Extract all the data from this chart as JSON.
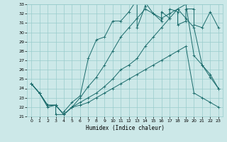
{
  "xlabel": "Humidex (Indice chaleur)",
  "xlim": [
    -0.5,
    23.5
  ],
  "ylim": [
    21,
    33
  ],
  "xticks": [
    0,
    1,
    2,
    3,
    4,
    5,
    6,
    7,
    8,
    9,
    10,
    11,
    12,
    13,
    14,
    15,
    16,
    17,
    18,
    19,
    20,
    21,
    22,
    23
  ],
  "yticks": [
    21,
    22,
    23,
    24,
    25,
    26,
    27,
    28,
    29,
    30,
    31,
    32,
    33
  ],
  "bg_color": "#cce8e8",
  "grid_color": "#99cccc",
  "line_color": "#1a6b6b",
  "line1_x": [
    0,
    1,
    2,
    3,
    3,
    4,
    4,
    5,
    6,
    7,
    8,
    9,
    10,
    11,
    12,
    13,
    13,
    14,
    14,
    15,
    16,
    16,
    17,
    17,
    18,
    18,
    19,
    19,
    20,
    20,
    21,
    22,
    23
  ],
  "line1_y": [
    24.5,
    23.5,
    22.0,
    22.2,
    21.2,
    21.2,
    21.5,
    22.5,
    23.2,
    27.2,
    29.2,
    29.5,
    31.2,
    31.2,
    32.2,
    33.5,
    30.5,
    32.8,
    33.2,
    32.0,
    31.2,
    32.2,
    31.5,
    32.5,
    32.2,
    30.8,
    31.2,
    32.5,
    32.5,
    30.8,
    30.5,
    32.2,
    30.5
  ],
  "line2_x": [
    0,
    1,
    2,
    3,
    4,
    5,
    6,
    7,
    8,
    9,
    10,
    11,
    12,
    13,
    14,
    15,
    16,
    17,
    18,
    19,
    20,
    21,
    22,
    23
  ],
  "line2_y": [
    24.5,
    23.5,
    22.2,
    22.2,
    21.2,
    22.0,
    23.0,
    24.2,
    25.2,
    26.5,
    28.0,
    29.5,
    30.5,
    31.5,
    32.5,
    32.0,
    31.5,
    32.0,
    32.5,
    31.5,
    30.5,
    26.5,
    25.2,
    24.0
  ],
  "line3_x": [
    0,
    1,
    2,
    3,
    4,
    5,
    6,
    7,
    8,
    9,
    10,
    11,
    12,
    13,
    14,
    15,
    16,
    17,
    18,
    19,
    20,
    21,
    22,
    23
  ],
  "line3_y": [
    24.5,
    23.5,
    22.2,
    22.2,
    21.2,
    22.0,
    22.5,
    23.0,
    23.5,
    24.2,
    25.0,
    26.0,
    26.5,
    27.2,
    28.5,
    29.5,
    30.5,
    31.5,
    32.5,
    33.0,
    27.5,
    26.5,
    25.5,
    24.0
  ],
  "line4_x": [
    0,
    1,
    2,
    3,
    4,
    5,
    6,
    7,
    8,
    9,
    10,
    11,
    12,
    13,
    14,
    15,
    16,
    17,
    18,
    19,
    20,
    21,
    22,
    23
  ],
  "line4_y": [
    24.5,
    23.5,
    22.2,
    22.2,
    21.2,
    22.0,
    22.2,
    22.5,
    23.0,
    23.5,
    24.0,
    24.5,
    25.0,
    25.5,
    26.0,
    26.5,
    27.0,
    27.5,
    28.0,
    28.5,
    23.5,
    23.0,
    22.5,
    22.0
  ]
}
